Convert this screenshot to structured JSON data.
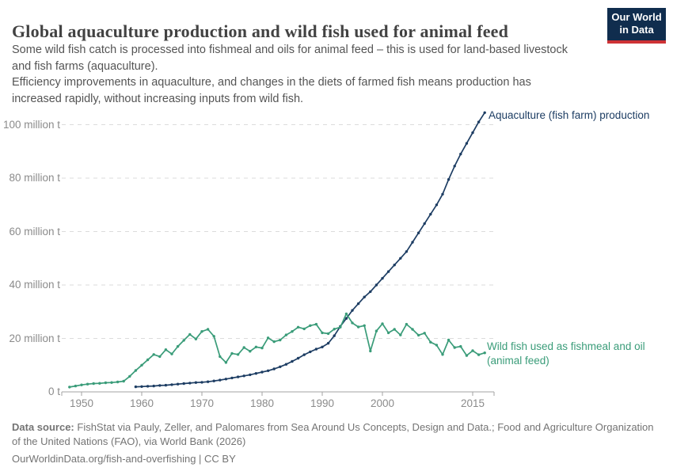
{
  "header": {
    "title": "Global aquaculture production and wild fish used for animal feed",
    "subtitle_line1": "Some wild fish catch is processed into fishmeal and oils for animal feed – this is used for land-based livestock",
    "subtitle_line2": "and fish farms (aquaculture).",
    "subtitle_line3": "Efficiency improvements in aquaculture, and changes in the diets of farmed fish means production has",
    "subtitle_line4": "increased rapidly, without increasing inputs from wild fish."
  },
  "logo": {
    "line1": "Our World",
    "line2": "in Data",
    "bg_color": "#102d4e",
    "stripe_color": "#ce3235"
  },
  "chart_data": {
    "type": "line",
    "title": "Global aquaculture production and wild fish used for animal feed",
    "unit": "million tonnes",
    "xlim": [
      1948,
      2017.5
    ],
    "ylim": [
      0,
      105
    ],
    "grid": "horizontal dashed",
    "legend_position": "line-end labels",
    "yticks": [
      {
        "value": 0,
        "label": "0 t"
      },
      {
        "value": 20,
        "label": "20 million t"
      },
      {
        "value": 40,
        "label": "40 million t"
      },
      {
        "value": 60,
        "label": "60 million t"
      },
      {
        "value": 80,
        "label": "80 million t"
      },
      {
        "value": 100,
        "label": "100 million t"
      }
    ],
    "xticks": [
      {
        "year": 1950,
        "label": "1950"
      },
      {
        "year": 1960,
        "label": "1960"
      },
      {
        "year": 1970,
        "label": "1970"
      },
      {
        "year": 1980,
        "label": "1980"
      },
      {
        "year": 1990,
        "label": "1990"
      },
      {
        "year": 2000,
        "label": "2000"
      },
      {
        "year": 2015,
        "label": "2015"
      }
    ],
    "series": [
      {
        "id": "aquaculture",
        "name": "Aquaculture (fish farm) production",
        "end_label": "Aquaculture (fish farm) production",
        "color": "#1d3d63",
        "start_year": 1959,
        "values": [
          1.9,
          2.0,
          2.1,
          2.2,
          2.4,
          2.5,
          2.7,
          2.9,
          3.1,
          3.3,
          3.5,
          3.6,
          3.8,
          4.1,
          4.4,
          4.8,
          5.2,
          5.6,
          6.0,
          6.4,
          6.9,
          7.4,
          7.9,
          8.6,
          9.4,
          10.3,
          11.4,
          12.6,
          13.9,
          15.0,
          16.0,
          16.8,
          18.2,
          21.0,
          24.5,
          27.5,
          30.5,
          33.0,
          35.5,
          37.5,
          40.0,
          42.5,
          45.0,
          47.5,
          50.0,
          52.5,
          56.0,
          59.5,
          63.0,
          66.5,
          70.0,
          74.0,
          79.5,
          84.5,
          89.0,
          93.0,
          97.0,
          101.0,
          104.5
        ]
      },
      {
        "id": "wild-fish-fishmeal",
        "name": "Wild fish used as fishmeal and oil (animal feed)",
        "end_label_line1": "Wild fish used as fishmeal and oil",
        "end_label_line2": "(animal feed)",
        "color": "#3a9c79",
        "start_year": 1948,
        "values": [
          1.8,
          2.2,
          2.6,
          2.9,
          3.1,
          3.2,
          3.4,
          3.5,
          3.7,
          4.0,
          5.8,
          8.0,
          10.0,
          12.0,
          14.0,
          13.2,
          15.8,
          14.2,
          17.0,
          19.3,
          21.5,
          19.8,
          22.6,
          23.4,
          20.8,
          13.2,
          11.0,
          14.4,
          14.0,
          16.6,
          15.2,
          16.8,
          16.4,
          20.2,
          18.8,
          19.4,
          21.3,
          22.6,
          24.2,
          23.6,
          24.8,
          25.3,
          22.1,
          21.8,
          23.5,
          24.2,
          29.2,
          25.8,
          24.3,
          24.8,
          15.3,
          22.8,
          25.5,
          22.1,
          23.4,
          21.3,
          25.3,
          23.4,
          21.2,
          22.0,
          18.6,
          17.5,
          14.0,
          19.4,
          16.6,
          17.0,
          13.6,
          15.4,
          13.9,
          14.6
        ]
      }
    ]
  },
  "footer": {
    "source_label": "Data source:",
    "source_line1": "FishStat via Pauly, Zeller, and Palomares from Sea Around Us Concepts, Design and Data.; Food and Agriculture Organization",
    "source_line2": "of the United Nations (FAO), via World Bank (2026)",
    "link_line": "OurWorldinData.org/fish-and-overfishing | CC BY"
  }
}
